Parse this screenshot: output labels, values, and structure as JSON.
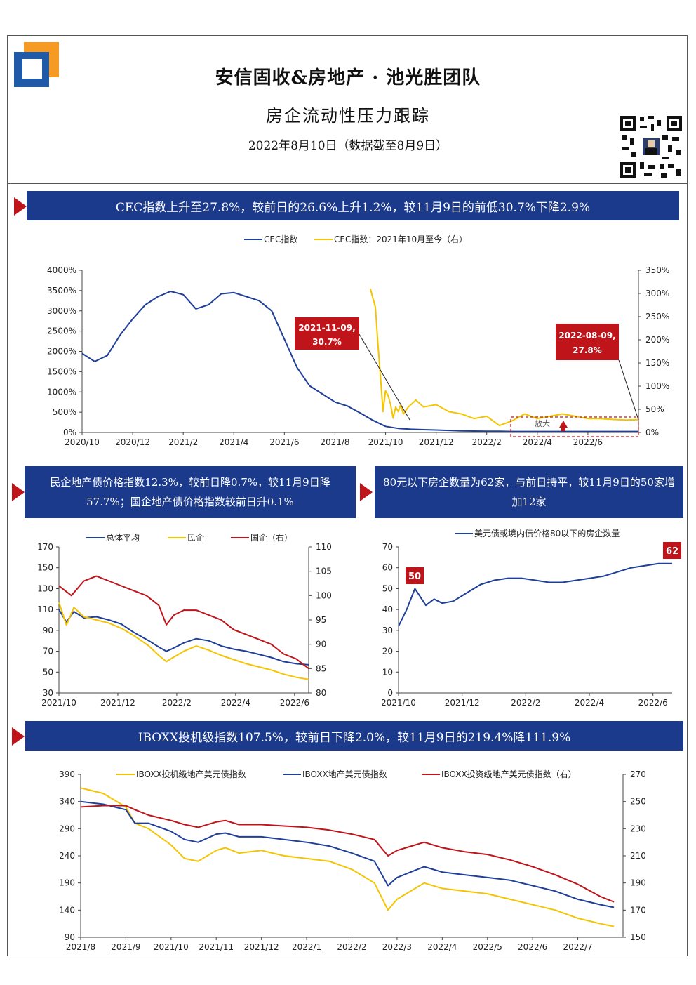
{
  "header": {
    "title": "安信固收&房地产 · 池光胜团队",
    "subtitle": "房企流动性压力跟踪",
    "date": "2022年8月10日（数据截至8月9日）"
  },
  "sections": {
    "s1": "CEC指数上升至27.8%，较前日的26.6%上升1.2%，较11月9日的前低30.7%下降2.9%",
    "s2": "民企地产债价格指数12.3%，较前日降0.7%，较11月9日降57.7%；国企地产债价格指数较前日升0.1%",
    "s3": "80元以下房企数量为62家，与前日持平，较11月9日的50家增加12家",
    "s4": "IBOXX投机级指数107.5%，较前日下降2.0%，较11月9日的219.4%降111.9%"
  },
  "colors": {
    "navy": "#1b3a8c",
    "red": "#c0141b",
    "gold": "#f5c400",
    "blue": "#1f3f99",
    "crimson": "#c0141b"
  },
  "chart_data": [
    {
      "type": "line",
      "legend": [
        "CEC指数",
        "CEC指数：2021年10月至今（右）"
      ],
      "x_ticks": [
        "2020/10",
        "2020/12",
        "2021/2",
        "2021/4",
        "2021/6",
        "2021/8",
        "2021/10",
        "2021/12",
        "2022/2",
        "2022/4",
        "2022/6"
      ],
      "y_left_ticks": [
        "0%",
        "500%",
        "1000%",
        "1500%",
        "2000%",
        "2500%",
        "3000%",
        "3500%",
        "4000%"
      ],
      "y_right_ticks": [
        "0%",
        "50%",
        "100%",
        "150%",
        "200%",
        "250%",
        "300%",
        "350%"
      ],
      "ylim_left": [
        0,
        4000
      ],
      "ylim_right": [
        0,
        350
      ],
      "annotations": [
        "2021-11-09,\n30.7%",
        "2022-08-09,\n27.8%"
      ],
      "zoom_label": "放大",
      "series": [
        {
          "name": "CEC指数",
          "axis": "left",
          "x": [
            0,
            0.5,
            1,
            1.5,
            2,
            2.5,
            3,
            3.5,
            4,
            4.5,
            5,
            5.5,
            6,
            6.5,
            7,
            7.5,
            8,
            8.5,
            9,
            9.5,
            10,
            10.5,
            11,
            11.5,
            12,
            12.5,
            13,
            13.5,
            14,
            14.5,
            15,
            15.5,
            16,
            16.5,
            17,
            17.5,
            18,
            18.5,
            19,
            19.5,
            20,
            20.5,
            21,
            21.5,
            22
          ],
          "values": [
            1950,
            1750,
            1900,
            2400,
            2800,
            3150,
            3350,
            3480,
            3400,
            3050,
            3150,
            3420,
            3450,
            3350,
            3250,
            3000,
            2300,
            1600,
            1150,
            950,
            750,
            650,
            480,
            300,
            150,
            100,
            80,
            70,
            60,
            50,
            40,
            35,
            30,
            30,
            25,
            25,
            25,
            25,
            25,
            25,
            25,
            25,
            25,
            25,
            25
          ]
        },
        {
          "name": "CEC指数：2021年10月至今（右）",
          "axis": "right",
          "x": [
            11.4,
            11.6,
            11.7,
            11.8,
            11.9,
            12.0,
            12.1,
            12.2,
            12.3,
            12.4,
            12.5,
            12.6,
            12.7,
            12.9,
            13.2,
            13.5,
            14,
            14.5,
            15,
            15.5,
            16,
            16.5,
            17,
            17.5,
            18,
            18.5,
            19,
            19.5,
            20,
            20.5,
            21,
            21.5,
            22
          ],
          "values": [
            310,
            270,
            190,
            120,
            45,
            90,
            80,
            60,
            30.7,
            55,
            45,
            60,
            40,
            55,
            70,
            55,
            60,
            45,
            40,
            30,
            35,
            15,
            25,
            40,
            30,
            35,
            40,
            35,
            30,
            30,
            28,
            27,
            27.8
          ]
        }
      ]
    },
    {
      "type": "line",
      "legend": [
        "总体平均",
        "民企",
        "国企（右）"
      ],
      "x_ticks": [
        "2021/10",
        "2021/12",
        "2022/2",
        "2022/4",
        "2022/6"
      ],
      "y_left_ticks": [
        "30",
        "50",
        "70",
        "90",
        "110",
        "130",
        "150",
        "170"
      ],
      "y_right_ticks": [
        "80",
        "85",
        "90",
        "95",
        "100",
        "105",
        "110"
      ],
      "ylim_left": [
        30,
        170
      ],
      "ylim_right": [
        80,
        110
      ],
      "series": [
        {
          "name": "总体平均",
          "axis": "left",
          "x": [
            0,
            0.3,
            0.6,
            1,
            1.5,
            2,
            2.5,
            3,
            3.3,
            3.6,
            4,
            4.3,
            4.5,
            5,
            5.5,
            6,
            6.5,
            7,
            7.5,
            8,
            8.5,
            9,
            9.5,
            10
          ],
          "values": [
            110,
            98,
            108,
            102,
            103,
            100,
            96,
            88,
            84,
            80,
            74,
            70,
            72,
            78,
            82,
            80,
            75,
            72,
            70,
            67,
            64,
            60,
            58,
            57
          ]
        },
        {
          "name": "民企",
          "axis": "left",
          "x": [
            0,
            0.3,
            0.6,
            1,
            1.5,
            2,
            2.5,
            3,
            3.3,
            3.6,
            4,
            4.3,
            4.5,
            5,
            5.5,
            6,
            6.5,
            7,
            7.5,
            8,
            8.5,
            9,
            9.5,
            10
          ],
          "values": [
            117,
            95,
            112,
            103,
            100,
            97,
            92,
            85,
            80,
            75,
            66,
            60,
            63,
            70,
            75,
            71,
            66,
            62,
            58,
            55,
            52,
            48,
            45,
            43
          ]
        },
        {
          "name": "国企（右）",
          "axis": "right",
          "x": [
            0,
            0.5,
            1,
            1.5,
            2,
            2.5,
            3,
            3.5,
            4,
            4.3,
            4.6,
            5,
            5.5,
            6,
            6.5,
            7,
            7.5,
            8,
            8.5,
            9,
            9.5,
            10
          ],
          "values": [
            102,
            100,
            103,
            104,
            103,
            102,
            101,
            100,
            98,
            94,
            96,
            97,
            97,
            96,
            95,
            93,
            92,
            91,
            90,
            88,
            87,
            85
          ]
        }
      ]
    },
    {
      "type": "line",
      "legend": [
        "美元债或境内债价格80以下的房企数量"
      ],
      "x_ticks": [
        "2021/10",
        "2021/12",
        "2022/2",
        "2022/4",
        "2022/6"
      ],
      "y_ticks": [
        "0",
        "10",
        "20",
        "30",
        "40",
        "50",
        "60",
        "70"
      ],
      "ylim": [
        0,
        70
      ],
      "labels": [
        "50",
        "62"
      ],
      "series": [
        {
          "name": "美元债或境内债价格80以下的房企数量",
          "x": [
            0,
            0.3,
            0.6,
            1,
            1.3,
            1.6,
            2,
            2.5,
            3,
            3.5,
            4,
            4.5,
            5,
            5.5,
            6,
            6.5,
            7,
            7.5,
            8,
            8.5,
            9,
            9.5,
            10
          ],
          "values": [
            32,
            40,
            50,
            42,
            45,
            43,
            44,
            48,
            52,
            54,
            55,
            55,
            54,
            53,
            53,
            54,
            55,
            56,
            58,
            60,
            61,
            62,
            62
          ]
        }
      ]
    },
    {
      "type": "line",
      "legend": [
        "IBOXX投机级地产美元债指数",
        "IBOXX地产美元债指数",
        "IBOXX投资级地产美元债指数（右）"
      ],
      "x_ticks": [
        "2021/8",
        "2021/9",
        "2021/10",
        "2021/11",
        "2021/12",
        "2022/1",
        "2022/2",
        "2022/3",
        "2022/4",
        "2022/5",
        "2022/6",
        "2022/7"
      ],
      "y_left_ticks": [
        "90",
        "140",
        "190",
        "240",
        "290",
        "340",
        "390"
      ],
      "y_right_ticks": [
        "150",
        "170",
        "190",
        "210",
        "230",
        "250",
        "270"
      ],
      "ylim_left": [
        90,
        390
      ],
      "ylim_right": [
        150,
        270
      ],
      "series": [
        {
          "name": "IBOXX投机级地产美元债指数",
          "axis": "left",
          "x": [
            0,
            0.5,
            1,
            1.2,
            1.5,
            2,
            2.3,
            2.6,
            3,
            3.2,
            3.5,
            4,
            4.5,
            5,
            5.5,
            6,
            6.5,
            6.8,
            7,
            7.3,
            7.6,
            8,
            8.5,
            9,
            9.5,
            10,
            10.5,
            11,
            11.5,
            11.8
          ],
          "values": [
            365,
            355,
            330,
            300,
            290,
            260,
            235,
            230,
            250,
            255,
            245,
            250,
            240,
            235,
            230,
            215,
            190,
            140,
            160,
            175,
            190,
            180,
            175,
            170,
            160,
            150,
            140,
            125,
            115,
            110
          ]
        },
        {
          "name": "IBOXX地产美元债指数",
          "axis": "left",
          "x": [
            0,
            0.5,
            1,
            1.2,
            1.5,
            2,
            2.3,
            2.6,
            3,
            3.2,
            3.5,
            4,
            4.5,
            5,
            5.5,
            6,
            6.5,
            6.8,
            7,
            7.3,
            7.6,
            8,
            8.5,
            9,
            9.5,
            10,
            10.5,
            11,
            11.5,
            11.8
          ],
          "values": [
            340,
            335,
            325,
            300,
            300,
            285,
            270,
            265,
            280,
            282,
            275,
            275,
            270,
            265,
            258,
            245,
            230,
            185,
            200,
            210,
            220,
            210,
            205,
            200,
            195,
            185,
            175,
            160,
            150,
            145
          ]
        },
        {
          "name": "IBOXX投资级地产美元债指数（右）",
          "axis": "right",
          "x": [
            0,
            0.5,
            1,
            1.2,
            1.5,
            2,
            2.3,
            2.6,
            3,
            3.2,
            3.5,
            4,
            4.5,
            5,
            5.5,
            6,
            6.5,
            6.8,
            7,
            7.3,
            7.6,
            8,
            8.5,
            9,
            9.5,
            10,
            10.5,
            11,
            11.5,
            11.8
          ],
          "values": [
            246,
            247,
            247,
            244,
            240,
            236,
            233,
            231,
            235,
            236,
            233,
            233,
            232,
            231,
            229,
            226,
            222,
            210,
            214,
            217,
            220,
            216,
            213,
            211,
            207,
            202,
            196,
            189,
            180,
            176
          ]
        }
      ]
    }
  ]
}
